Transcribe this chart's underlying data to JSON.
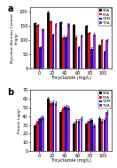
{
  "panel_a": {
    "title": "a",
    "ylabel": "Mycelium Biomass Content\n(mg/g)",
    "xlabel": "Tricyclazole (mg/L)",
    "ylim": [
      0,
      215
    ],
    "yticks": [
      0,
      50,
      100,
      150,
      200
    ],
    "x_labels": [
      "0",
      "20",
      "40",
      "60",
      "80",
      "100"
    ],
    "series": {
      "SDA": [
        158,
        198,
        163,
        152,
        150,
        80
      ],
      "PDA": [
        153,
        165,
        110,
        110,
        125,
        100
      ],
      "CDM": [
        75,
        118,
        110,
        75,
        70,
        58
      ],
      "TEA": [
        137,
        155,
        155,
        115,
        120,
        100
      ]
    },
    "errors": {
      "SDA": [
        4,
        4,
        4,
        4,
        4,
        4
      ],
      "PDA": [
        4,
        4,
        4,
        4,
        4,
        4
      ],
      "CDM": [
        4,
        4,
        4,
        4,
        4,
        4
      ],
      "TEA": [
        4,
        4,
        4,
        4,
        4,
        4
      ]
    },
    "colors": {
      "SDA": "#111111",
      "PDA": "#dd1111",
      "CDM": "#1111cc",
      "TEA": "#8833bb"
    }
  },
  "panel_b": {
    "title": "b",
    "ylabel": "Protein (ug/g)",
    "xlabel": "Tricyclazole (mg/L)",
    "ylim": [
      0,
      70
    ],
    "yticks": [
      0,
      10,
      20,
      30,
      40,
      50,
      60,
      70
    ],
    "x_labels": [
      "0",
      "20",
      "40",
      "60",
      "80",
      "100"
    ],
    "series": {
      "SDA": [
        30,
        60,
        45,
        32,
        32,
        38
      ],
      "PDA": [
        35,
        55,
        50,
        35,
        35,
        35
      ],
      "CDM": [
        38,
        56,
        51,
        35,
        36,
        36
      ],
      "TEA": [
        39,
        55,
        50,
        38,
        30,
        45
      ]
    },
    "errors": {
      "SDA": [
        2,
        2,
        2,
        2,
        2,
        2
      ],
      "PDA": [
        2,
        2,
        2,
        2,
        2,
        2
      ],
      "CDM": [
        2,
        2,
        2,
        2,
        2,
        2
      ],
      "TEA": [
        2,
        2,
        2,
        2,
        2,
        2
      ]
    },
    "colors": {
      "SDA": "#111111",
      "PDA": "#dd1111",
      "CDM": "#1111cc",
      "TEA": "#8833bb"
    }
  }
}
